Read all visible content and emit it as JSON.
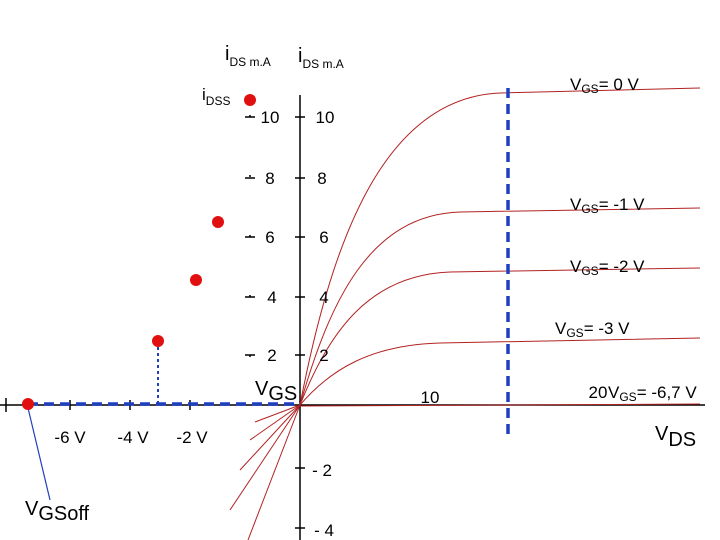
{
  "labels": {
    "ids_left": {
      "main": "i",
      "sub": "DS m.A"
    },
    "ids_right": {
      "main": "i",
      "sub": "DS m.A"
    },
    "idss": {
      "main": "i",
      "sub": "DSS"
    },
    "vgs_axis": {
      "main": "V",
      "sub": "GS"
    },
    "vds_axis": {
      "main": "V",
      "sub": "DS"
    },
    "vgsoff": {
      "main": "V",
      "sub": "GSoff"
    }
  },
  "left_ticks": [
    "10",
    "8",
    "6",
    "4",
    "2"
  ],
  "right_ticks": [
    "10",
    "8",
    "6",
    "4",
    "2"
  ],
  "x_ticks_negative": [
    "-6 V",
    "-4 V",
    "-2 V"
  ],
  "x_ticks_positive": [
    "10",
    "20"
  ],
  "y_ticks_negative": [
    "- 2",
    "- 4"
  ],
  "curves": [
    {
      "main": "V",
      "sub": "GS",
      "rest": "= 0 V"
    },
    {
      "main": "V",
      "sub": "GS",
      "rest": "= -1 V"
    },
    {
      "main": "V",
      "sub": "GS",
      "rest": "= -2 V"
    },
    {
      "main": "V",
      "sub": "GS",
      "rest": "= -3 V"
    },
    {
      "main": "V",
      "sub": "GS",
      "rest": "= -6,7 V"
    }
  ]
}
